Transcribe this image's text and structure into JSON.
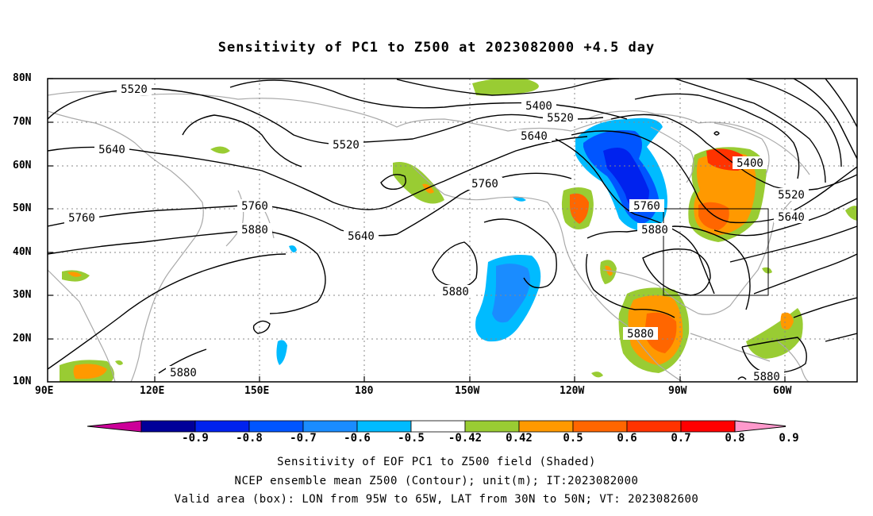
{
  "title": "Sensitivity of PC1 to Z500 at 2023082000 +4.5 day",
  "lat_labels": [
    "80N",
    "70N",
    "60N",
    "50N",
    "40N",
    "30N",
    "20N",
    "10N"
  ],
  "lon_labels": [
    "90E",
    "120E",
    "150E",
    "180",
    "150W",
    "120W",
    "90W",
    "60W"
  ],
  "contour_labels": {
    "c5520a": "5520",
    "c5400": "5400",
    "c5520b": "5520",
    "c5520c": "5520",
    "c5640a": "5640",
    "c5640b": "5640",
    "c5760a": "5760",
    "c5760b": "5760",
    "c5880a": "5880",
    "c5880b": "5880",
    "c5640c": "5640",
    "c5760c": "5760",
    "c5880c": "5880",
    "c5880d": "5880",
    "c5400b": "5400",
    "c5520d": "5520",
    "c5640d": "5640",
    "c5880e": "5880",
    "c5880f": "5880"
  },
  "colorbar": {
    "labels": [
      "-0.9",
      "-0.8",
      "-0.7",
      "-0.6",
      "-0.5",
      "-0.42",
      "0.42",
      "0.5",
      "0.6",
      "0.7",
      "0.8",
      "0.9"
    ],
    "colors": [
      "#000099",
      "#0022ee",
      "#0055ff",
      "#1a8cff",
      "#00bbff",
      "#ffffff",
      "#99cc33",
      "#ff9900",
      "#ff6600",
      "#ff3300",
      "#ff0000"
    ],
    "left_arrow_color": "#cc0099",
    "right_arrow_color": "#ff99cc"
  },
  "captions": [
    "Sensitivity of EOF PC1 to Z500 field (Shaded)",
    "NCEP ensemble mean Z500 (Contour); unit(m); IT:2023082000",
    "Valid area (box): LON from 95W to 65W, LAT from 30N to 50N; VT: 2023082600"
  ]
}
